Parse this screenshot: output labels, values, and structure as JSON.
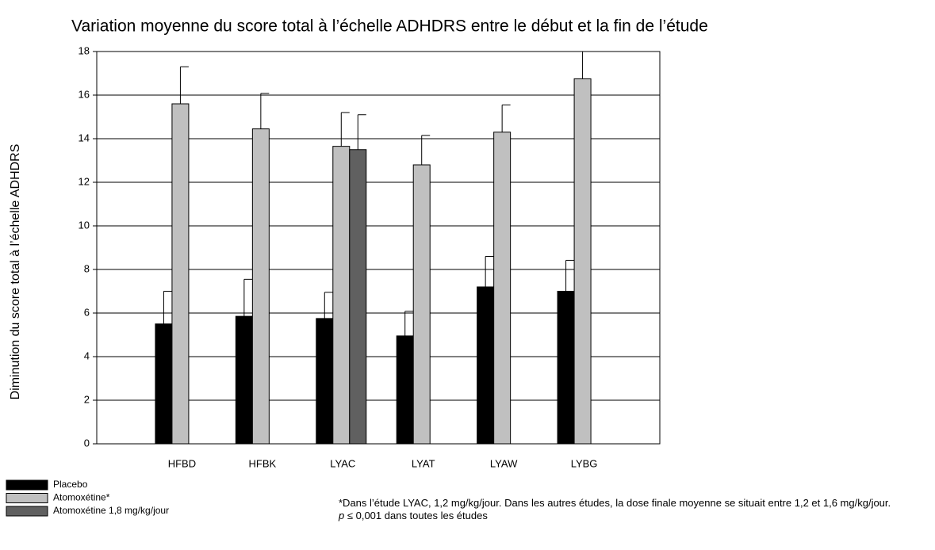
{
  "chart_data": {
    "type": "bar",
    "title": "Variation moyenne du score total à l’échelle ADHDRS entre le début et la fin de l’étude",
    "ylabel": "Diminution du score total à l’échelle ADHDRS",
    "categories": [
      "HFBD",
      "HFBK",
      "LYAC",
      "LYAT",
      "LYAW",
      "LYBG"
    ],
    "series": [
      {
        "name": "Placebo",
        "color": "#000000",
        "values": [
          5.5,
          5.85,
          5.75,
          4.95,
          7.2,
          7.0
        ],
        "errors": [
          1.5,
          1.7,
          1.2,
          1.13,
          1.4,
          1.42
        ]
      },
      {
        "name": "Atomoxétine*",
        "color": "#c0c0c0",
        "values": [
          15.6,
          14.45,
          13.65,
          12.8,
          14.3,
          16.75
        ],
        "errors": [
          1.7,
          1.63,
          1.55,
          1.35,
          1.25,
          1.25
        ]
      },
      {
        "name": "Atomoxétine 1,8 mg/kg/jour",
        "color": "#606060",
        "values": [
          null,
          null,
          13.5,
          null,
          null,
          null
        ],
        "errors": [
          null,
          null,
          1.6,
          null,
          null,
          null
        ]
      }
    ],
    "ylim": [
      0,
      18
    ],
    "yticks": [
      0,
      2,
      4,
      6,
      8,
      10,
      12,
      14,
      16,
      18
    ],
    "grid": true,
    "footnote": "*Dans l’étude LYAC, 1,2 mg/kg/jour. Dans les autres études, la dose finale moyenne se situait entre 1,2 et 1,6 mg/kg/jour.",
    "note_symbol": "p",
    "note_text": "≤ 0,001 dans toutes les études"
  }
}
